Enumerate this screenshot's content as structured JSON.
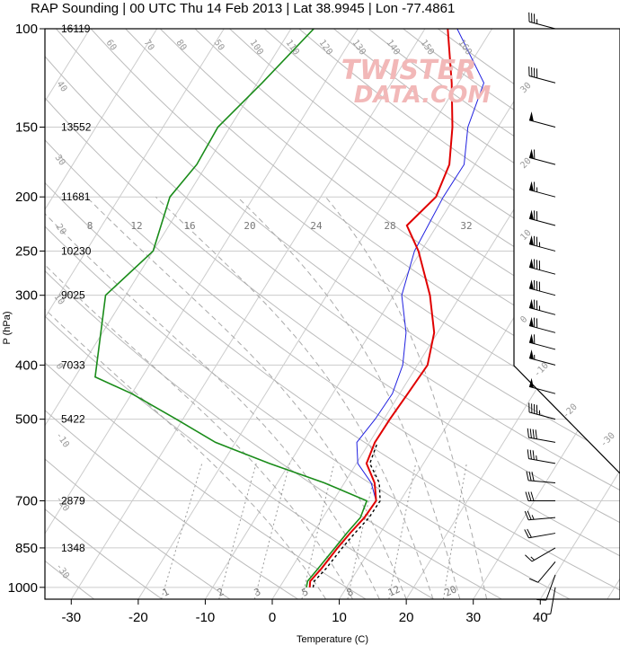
{
  "title": "RAP Sounding | 00 UTC Thu 14 Feb 2013 | Lat 38.9945 | Lon -77.4861",
  "watermark": {
    "line1": "TWISTER",
    "line2": "DATA.COM"
  },
  "colors": {
    "temperature": "#e00000",
    "virtual_temp": "#000000",
    "dewpoint": "#1a8c1a",
    "parcel": "#2020e0",
    "grid": "#cccccc",
    "adiabat": "#aaaaaa"
  },
  "chart_data": {
    "type": "line",
    "subtype": "skew-t log-p",
    "xlabel": "Temperature (C)",
    "ylabel": "P (hPa)",
    "xlim": [
      -34,
      48
    ],
    "ylim": [
      1050,
      100
    ],
    "x_ticks": [
      -30,
      -20,
      -10,
      0,
      10,
      20,
      30,
      40
    ],
    "y_ticks": [
      100,
      150,
      200,
      250,
      300,
      400,
      500,
      700,
      850,
      1000
    ],
    "heights": [
      {
        "p": 100,
        "label": "16119"
      },
      {
        "p": 150,
        "label": "13552"
      },
      {
        "p": 200,
        "label": "11681"
      },
      {
        "p": 250,
        "label": "10230"
      },
      {
        "p": 300,
        "label": "9025"
      },
      {
        "p": 400,
        "label": "7033"
      },
      {
        "p": 500,
        "label": "5422"
      },
      {
        "p": 700,
        "label": "2879"
      },
      {
        "p": 850,
        "label": "1348"
      }
    ],
    "mixing_ratio_labels": [
      "1",
      "2",
      "3",
      "5",
      "8",
      "12",
      "20"
    ],
    "adiabat_labels": [
      "160",
      "150",
      "140",
      "130",
      "120",
      "110",
      "100",
      "90",
      "80",
      "70",
      "60",
      "50",
      "40",
      "30",
      "20",
      "10",
      "0"
    ],
    "temp_labels": [
      "8",
      "12",
      "16",
      "20",
      "24",
      "28",
      "32"
    ],
    "series": [
      {
        "name": "Temperature",
        "points": [
          [
            1000,
            4.5
          ],
          [
            975,
            4.0
          ],
          [
            925,
            4.5
          ],
          [
            850,
            5.0
          ],
          [
            800,
            5.5
          ],
          [
            750,
            6.2
          ],
          [
            700,
            6.4
          ],
          [
            650,
            4.5
          ],
          [
            600,
            1.5
          ],
          [
            550,
            0.8
          ],
          [
            500,
            0.9
          ],
          [
            450,
            1.2
          ],
          [
            400,
            1.5
          ],
          [
            350,
            -0.5
          ],
          [
            300,
            -4.6
          ],
          [
            250,
            -10.4
          ],
          [
            225,
            -14.5
          ],
          [
            200,
            -12.8
          ],
          [
            175,
            -13.8
          ],
          [
            150,
            -16.8
          ],
          [
            125,
            -21.0
          ],
          [
            100,
            -26.6
          ]
        ]
      },
      {
        "name": "Virtual Temperature",
        "points": [
          [
            1000,
            5.0
          ],
          [
            975,
            4.6
          ],
          [
            925,
            5.2
          ],
          [
            850,
            5.7
          ],
          [
            800,
            6.2
          ],
          [
            750,
            6.9
          ],
          [
            700,
            7.0
          ],
          [
            650,
            5.2
          ],
          [
            600,
            2.0
          ],
          [
            550,
            1.2
          ]
        ]
      },
      {
        "name": "Dewpoint",
        "points": [
          [
            1000,
            4.0
          ],
          [
            975,
            3.6
          ],
          [
            925,
            4.0
          ],
          [
            850,
            4.6
          ],
          [
            800,
            5.0
          ],
          [
            750,
            5.6
          ],
          [
            700,
            5.0
          ],
          [
            650,
            -3.0
          ],
          [
            600,
            -13.0
          ],
          [
            550,
            -23.0
          ],
          [
            500,
            -31.0
          ],
          [
            450,
            -40.0
          ],
          [
            420,
            -47.0
          ],
          [
            300,
            -53.0
          ],
          [
            250,
            -50.0
          ],
          [
            200,
            -52.5
          ],
          [
            175,
            -51.5
          ],
          [
            150,
            -51.8
          ],
          [
            125,
            -49.3
          ],
          [
            100,
            -46.6
          ]
        ]
      },
      {
        "name": "Parcel",
        "points": [
          [
            700,
            6.4
          ],
          [
            650,
            4.0
          ],
          [
            600,
            0.2
          ],
          [
            550,
            -1.9
          ],
          [
            500,
            -1.3
          ],
          [
            450,
            -1.1
          ],
          [
            400,
            -2.2
          ],
          [
            350,
            -4.7
          ],
          [
            300,
            -8.8
          ],
          [
            250,
            -11.0
          ],
          [
            200,
            -11.7
          ],
          [
            175,
            -11.6
          ],
          [
            150,
            -14.5
          ],
          [
            125,
            -16.2
          ],
          [
            100,
            -25.2
          ]
        ]
      }
    ],
    "winds": [
      {
        "p": 100,
        "dir": 285,
        "spd": 35
      },
      {
        "p": 125,
        "dir": 285,
        "spd": 40
      },
      {
        "p": 150,
        "dir": 285,
        "spd": 50
      },
      {
        "p": 175,
        "dir": 285,
        "spd": 60
      },
      {
        "p": 200,
        "dir": 285,
        "spd": 65
      },
      {
        "p": 225,
        "dir": 285,
        "spd": 70
      },
      {
        "p": 250,
        "dir": 285,
        "spd": 75
      },
      {
        "p": 275,
        "dir": 285,
        "spd": 80
      },
      {
        "p": 300,
        "dir": 285,
        "spd": 80
      },
      {
        "p": 325,
        "dir": 285,
        "spd": 75
      },
      {
        "p": 350,
        "dir": 285,
        "spd": 70
      },
      {
        "p": 375,
        "dir": 285,
        "spd": 60
      },
      {
        "p": 400,
        "dir": 285,
        "spd": 55
      },
      {
        "p": 450,
        "dir": 285,
        "spd": 50
      },
      {
        "p": 500,
        "dir": 285,
        "spd": 45
      },
      {
        "p": 550,
        "dir": 280,
        "spd": 40
      },
      {
        "p": 600,
        "dir": 280,
        "spd": 35
      },
      {
        "p": 650,
        "dir": 275,
        "spd": 30
      },
      {
        "p": 700,
        "dir": 270,
        "spd": 30
      },
      {
        "p": 750,
        "dir": 265,
        "spd": 25
      },
      {
        "p": 800,
        "dir": 260,
        "spd": 20
      },
      {
        "p": 850,
        "dir": 240,
        "spd": 15
      },
      {
        "p": 900,
        "dir": 220,
        "spd": 10
      },
      {
        "p": 950,
        "dir": 200,
        "spd": 10
      },
      {
        "p": 1000,
        "dir": 190,
        "spd": 5
      }
    ]
  }
}
